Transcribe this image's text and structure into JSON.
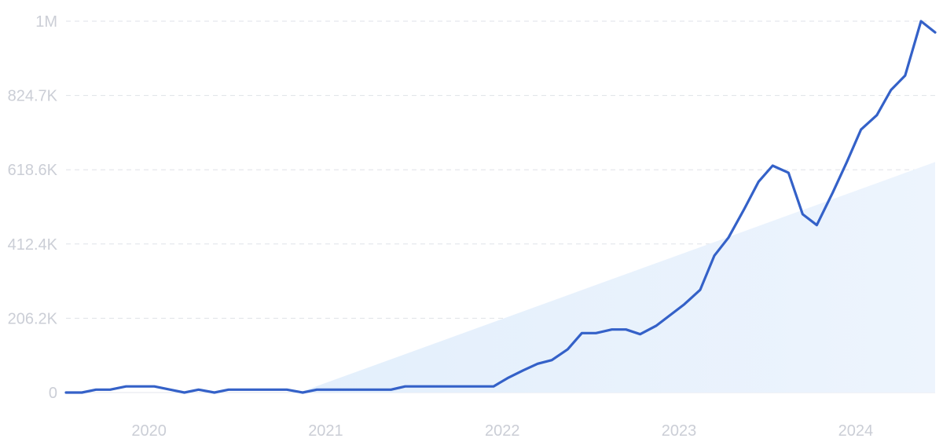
{
  "chart_data": {
    "type": "line",
    "title": "",
    "xlabel": "",
    "ylabel": "",
    "ylim": [
      0,
      1031000
    ],
    "y_ticks": [
      {
        "value": 0,
        "label": "0"
      },
      {
        "value": 206200,
        "label": "206.2K"
      },
      {
        "value": 412400,
        "label": "412.4K"
      },
      {
        "value": 618600,
        "label": "618.6K"
      },
      {
        "value": 824700,
        "label": "824.7K"
      },
      {
        "value": 1031000,
        "label": "1M"
      }
    ],
    "x_ticks": [
      {
        "value": 2020.0,
        "label": "2020"
      },
      {
        "value": 2021.0,
        "label": "2021"
      },
      {
        "value": 2022.0,
        "label": "2022"
      },
      {
        "value": 2023.0,
        "label": "2023"
      },
      {
        "value": 2024.0,
        "label": "2024"
      }
    ],
    "xlim": [
      2019.58,
      2024.5
    ],
    "grid": true,
    "colors": {
      "line": "#3461c8",
      "trend": "#e7f1fc",
      "grid": "#dfe2e8",
      "tick": "#cbced6"
    },
    "series": [
      {
        "x": [
          2019.58,
          2019.67,
          2019.75,
          2019.83,
          2019.92,
          2020.0,
          2020.08,
          2020.17,
          2020.25,
          2020.33,
          2020.42,
          2020.5,
          2020.58,
          2020.67,
          2020.75,
          2020.83,
          2020.92,
          2021.0,
          2021.08,
          2021.17,
          2021.25,
          2021.33,
          2021.42,
          2021.5,
          2021.58,
          2021.67,
          2021.75,
          2021.83,
          2021.92,
          2022.0,
          2022.08,
          2022.17,
          2022.25,
          2022.33,
          2022.42,
          2022.5,
          2022.58,
          2022.67,
          2022.75,
          2022.83,
          2022.92,
          2023.0,
          2023.08,
          2023.17,
          2023.25,
          2023.33,
          2023.42,
          2023.5,
          2023.58,
          2023.67,
          2023.75,
          2023.83,
          2023.92,
          2024.0,
          2024.08,
          2024.17,
          2024.25,
          2024.33,
          2024.42,
          2024.5
        ],
        "values": [
          0,
          0,
          8000,
          8000,
          17000,
          17000,
          17000,
          8000,
          0,
          8000,
          0,
          8000,
          8000,
          8000,
          8000,
          8000,
          0,
          8000,
          8000,
          8000,
          8000,
          8000,
          8000,
          17000,
          17000,
          17000,
          17000,
          17000,
          17000,
          17000,
          40000,
          62000,
          80000,
          90000,
          120000,
          165000,
          165000,
          175000,
          175000,
          162000,
          185000,
          215000,
          245000,
          285000,
          380000,
          430000,
          510000,
          585000,
          630000,
          610000,
          495000,
          465000,
          555000,
          640000,
          730000,
          770000,
          840000,
          880000,
          1031000,
          1000000
        ]
      }
    ],
    "trend": {
      "x": [
        2020.9,
        2024.5
      ],
      "values": [
        0,
        640000
      ]
    }
  }
}
